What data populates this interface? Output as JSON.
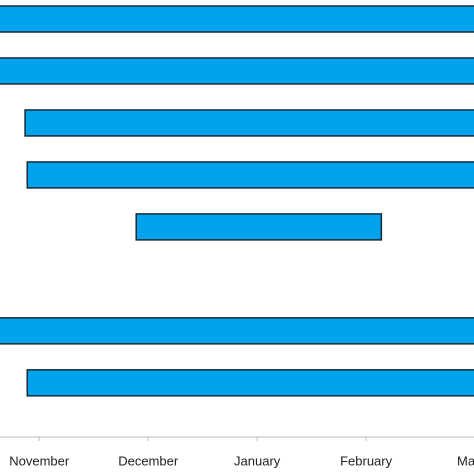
{
  "chart_data": {
    "type": "gantt",
    "categories": [
      null,
      null,
      null,
      null,
      null,
      null,
      null,
      null
    ],
    "start": [
      -0.5,
      -0.5,
      -0.13,
      -0.11,
      0.89,
      null,
      -0.5,
      -0.11
    ],
    "end": [
      4.5,
      4.5,
      4.5,
      4.5,
      3.14,
      null,
      4.5,
      4.5
    ],
    "color": "#00a3ec",
    "xlim": [
      -0.36,
      3.99
    ],
    "xticks": [
      {
        "value": 0,
        "label": "November"
      },
      {
        "value": 1,
        "label": "December"
      },
      {
        "value": 2,
        "label": "January"
      },
      {
        "value": 3,
        "label": "February"
      },
      {
        "value": 4,
        "label": "March"
      }
    ]
  }
}
